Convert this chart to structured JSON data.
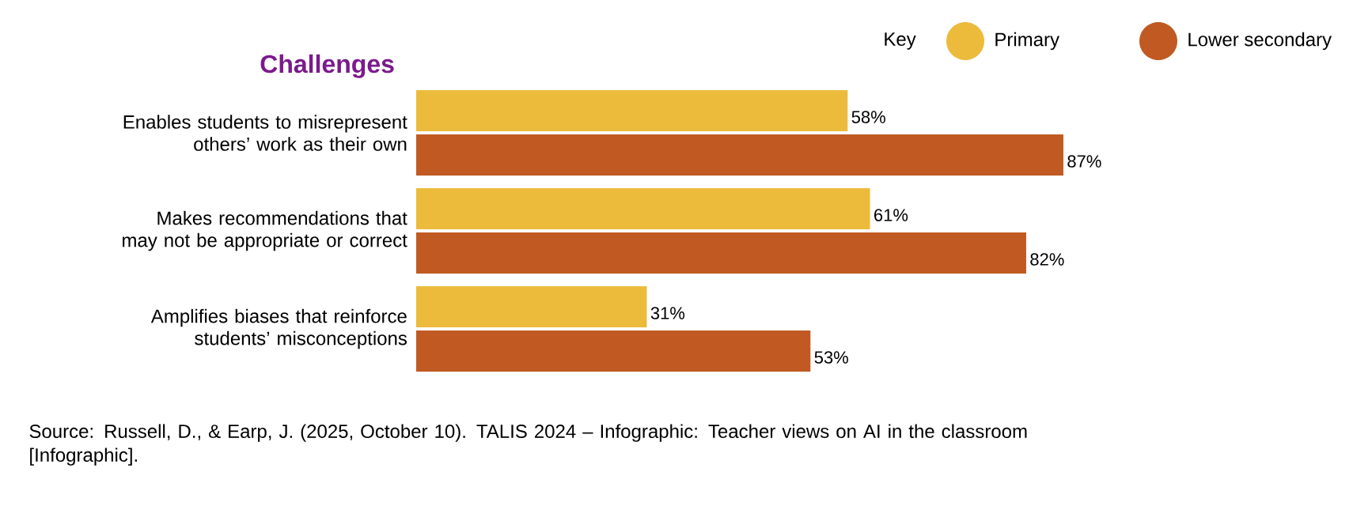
{
  "chart_data": {
    "type": "bar",
    "orientation": "horizontal",
    "title": "Challenges",
    "legend_title": "Key",
    "legend": "top right",
    "tick_labels": "y",
    "categories": [
      "Enables students to misrepresent others’ work as their own",
      "Makes recommendations that may not be appropriate or correct",
      "Amplifies biases that reinforce students’ misconceptions"
    ],
    "series": [
      {
        "name": "Primary",
        "color": "#ecbb3c",
        "values": [
          58,
          61,
          31
        ],
        "value_labels": [
          "58%",
          "61%",
          "31%"
        ]
      },
      {
        "name": "Lower secondary",
        "color": "#c05a22",
        "values": [
          87,
          82,
          53
        ],
        "value_labels": [
          "87%",
          "82%",
          "53%"
        ]
      }
    ],
    "annotations": [
      "Source: Russell, D., & Earp, J. (2025, October 10). TALIS 2024 – Infographic: Teacher views on AI in the classroom [Infographic]."
    ]
  }
}
